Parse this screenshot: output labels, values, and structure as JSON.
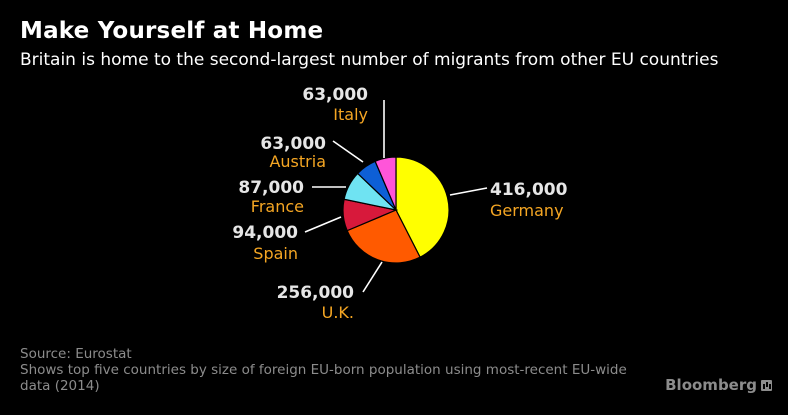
{
  "header": {
    "title": "Make Yourself at Home",
    "subtitle": "Britain is home to the second-largest number of migrants from other EU countries"
  },
  "footer": {
    "source": "Source: Eurostat",
    "note": "Shows top five countries by size of foreign EU-born population using most-recent EU-wide data (2014)",
    "brand": "Bloomberg"
  },
  "colors": {
    "value_label": "#e6e6e6",
    "country_label": "#f5a623",
    "leader_line": "#ffffff",
    "slice_border": "#000000"
  },
  "chart_data": {
    "type": "pie",
    "title": "Make Yourself at Home",
    "subtitle": "Britain is home to the second-largest number of migrants from other EU countries",
    "slices": [
      {
        "label": "Germany",
        "value": 416000,
        "value_label": "416,000",
        "color": "#ffff00"
      },
      {
        "label": "U.K.",
        "value": 256000,
        "value_label": "256,000",
        "color": "#ff5a00"
      },
      {
        "label": "Spain",
        "value": 94000,
        "value_label": "94,000",
        "color": "#d7193b"
      },
      {
        "label": "France",
        "value": 87000,
        "value_label": "87,000",
        "color": "#6fe3f2"
      },
      {
        "label": "Austria",
        "value": 63000,
        "value_label": "63,000",
        "color": "#0d5fd6"
      },
      {
        "label": "Italy",
        "value": 63000,
        "value_label": "63,000",
        "color": "#ff55d9"
      }
    ],
    "start_angle": "12 o'clock",
    "direction": "clockwise"
  }
}
